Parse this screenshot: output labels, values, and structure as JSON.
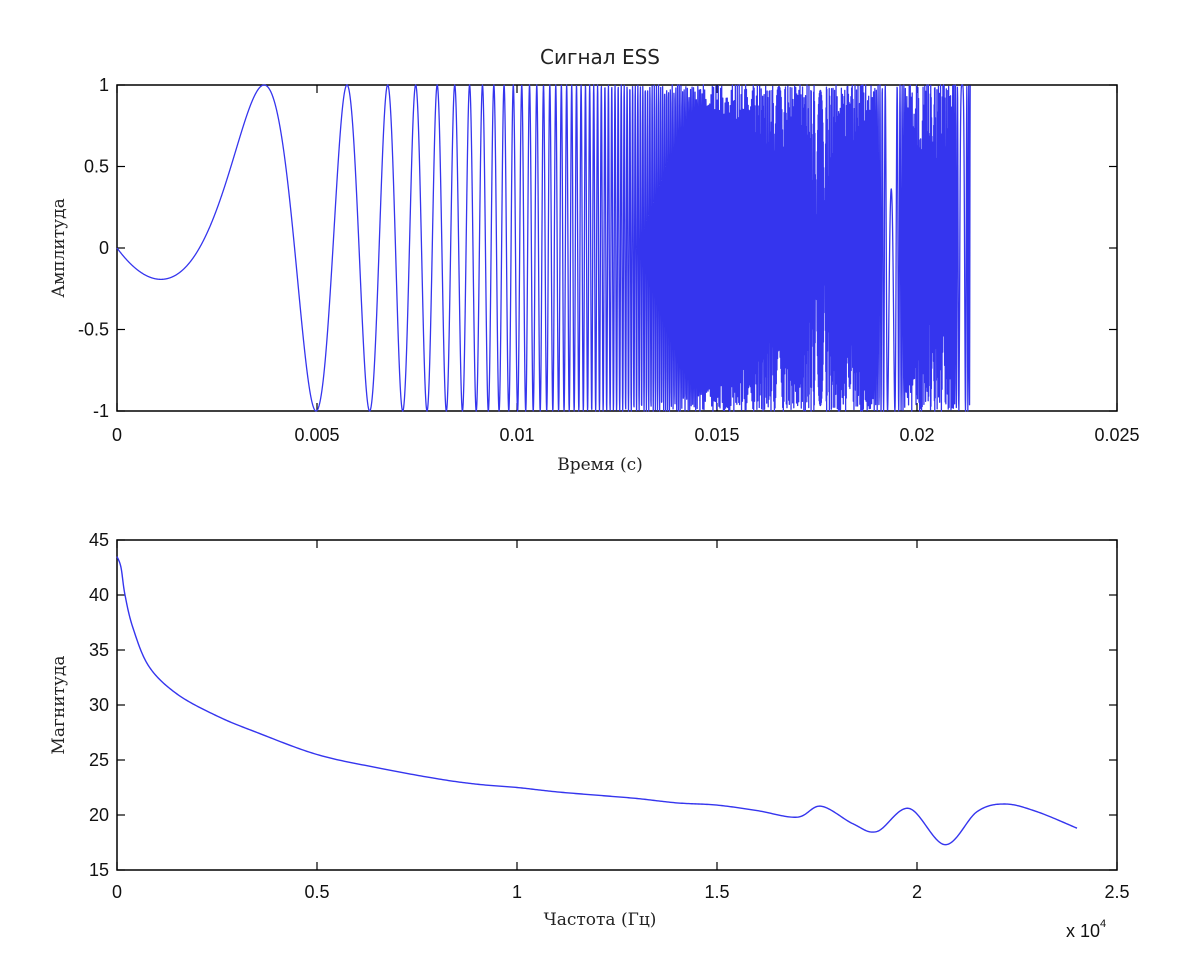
{
  "chart_data": [
    {
      "type": "line",
      "title": "Сигнал ESS",
      "xlabel": "Время (с)",
      "ylabel": "Амплитуда",
      "xlim": [
        0,
        0.025
      ],
      "ylim": [
        -1,
        1
      ],
      "xticks": [
        "0",
        "0.005",
        "0.01",
        "0.015",
        "0.02",
        "0.025"
      ],
      "yticks": [
        "1",
        "0.5",
        "0",
        "-0.5",
        "-1"
      ],
      "grid": false,
      "line_color": "#3333ee",
      "signal": {
        "kind": "exponential sine sweep",
        "duration": 0.02133,
        "peaks_at": [
          0.005,
          0.00925,
          0.011
        ],
        "troughs_at": [
          0.0078,
          0.0102
        ]
      }
    },
    {
      "type": "line",
      "title": "",
      "xlabel": "Частота (Гц)",
      "ylabel": "Магнитуда",
      "xlim": [
        0,
        25000
      ],
      "ylim": [
        15,
        45
      ],
      "xticks": [
        "0",
        "0.5",
        "1",
        "1.5",
        "2",
        "2.5"
      ],
      "yticks": [
        "45",
        "40",
        "35",
        "30",
        "25",
        "20",
        "15"
      ],
      "x_multiplier_base": "x 10",
      "x_multiplier_exp": "4",
      "grid": false,
      "line_color": "#3333ee",
      "series": [
        {
          "x": [
            0,
            100,
            200,
            400,
            800,
            1500,
            2500,
            3500,
            5000,
            6500,
            8000,
            9000,
            10000,
            11000,
            12000,
            13000,
            14000,
            15000,
            16000,
            17000,
            17600,
            18400,
            19000,
            19800,
            20700,
            21500,
            22200,
            23000,
            24000
          ],
          "y": [
            43.5,
            42.5,
            40.0,
            37.0,
            33.5,
            31.0,
            29.0,
            27.5,
            25.5,
            24.3,
            23.3,
            22.8,
            22.5,
            22.1,
            21.8,
            21.5,
            21.1,
            20.9,
            20.4,
            19.8,
            20.8,
            19.2,
            18.5,
            20.6,
            17.3,
            20.3,
            21.0,
            20.3,
            18.8
          ]
        }
      ]
    }
  ]
}
